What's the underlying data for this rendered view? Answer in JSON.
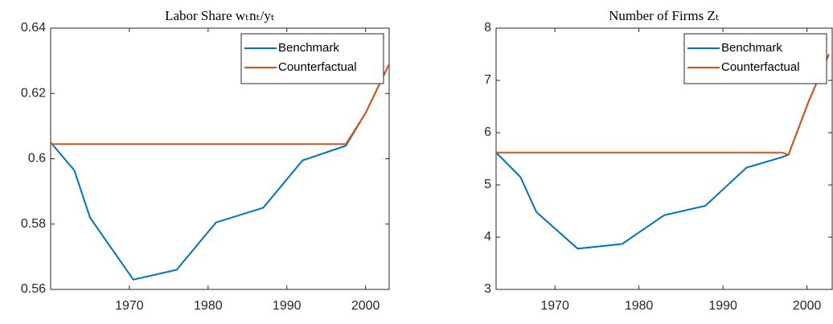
{
  "chart_data": [
    {
      "type": "line",
      "title": "Labor Share wₜnₜ/yₜ",
      "x": [
        1960,
        1963,
        1965,
        1970.5,
        1976,
        1981,
        1987,
        1992,
        1997.5,
        2000,
        2003
      ],
      "series": [
        {
          "name": "Benchmark",
          "color": "#0072bd",
          "values": [
            0.605,
            0.5965,
            0.582,
            0.563,
            0.566,
            0.5805,
            0.585,
            0.5995,
            0.604,
            0.614,
            0.629
          ]
        },
        {
          "name": "Counterfactual",
          "color": "#d95319",
          "values": [
            0.6045,
            0.6045,
            0.6045,
            0.6045,
            0.6045,
            0.6045,
            0.6045,
            0.6045,
            0.6045,
            0.614,
            0.629
          ]
        }
      ],
      "xlim": [
        1960,
        2003
      ],
      "xticks": [
        1970,
        1980,
        1990,
        2000
      ],
      "ylim": [
        0.56,
        0.64
      ],
      "yticks": [
        0.56,
        0.58,
        0.6,
        0.62,
        0.64
      ],
      "legend": "northeast"
    },
    {
      "type": "line",
      "title": "Number of Firms Zₜ",
      "x": [
        1963,
        1965.9,
        1967.8,
        1972.7,
        1978,
        1983,
        1987.9,
        1992.8,
        1997,
        1997.8,
        2000.2,
        2002.6
      ],
      "series": [
        {
          "name": "Benchmark",
          "color": "#0072bd",
          "values": [
            5.62,
            5.15,
            4.48,
            3.78,
            3.87,
            4.42,
            4.6,
            5.33,
            5.53,
            5.58,
            6.6,
            7.5
          ]
        },
        {
          "name": "Counterfactual",
          "color": "#d95319",
          "values": [
            5.62,
            5.62,
            5.62,
            5.62,
            5.62,
            5.62,
            5.62,
            5.62,
            5.62,
            5.58,
            6.6,
            7.5
          ]
        }
      ],
      "xlim": [
        1963,
        2003
      ],
      "xticks": [
        1970,
        1980,
        1990,
        2000
      ],
      "ylim": [
        3,
        8
      ],
      "yticks": [
        3,
        4,
        5,
        6,
        7,
        8
      ],
      "legend": "northeast"
    }
  ]
}
